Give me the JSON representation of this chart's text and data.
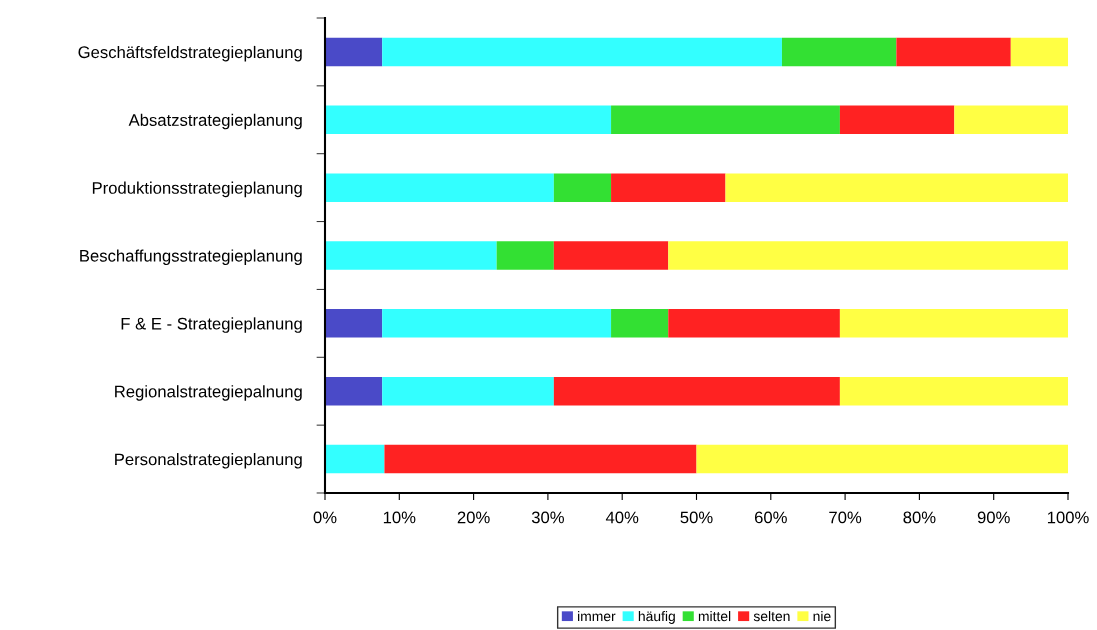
{
  "chart_data": {
    "type": "bar",
    "orientation": "horizontal",
    "stacked": true,
    "categories": [
      "Geschäftsfeldstrategieplanung",
      "Absatzstrategieplanung",
      "Produktionsstrategieplanung",
      "Beschaffungsstrategieplanung",
      "F & E - Strategieplanung",
      "Regionalstrategiepalnung",
      "Personalstrategieplanung"
    ],
    "series": [
      {
        "name": "immer",
        "color": "#4a4ac8",
        "values": [
          7.7,
          0,
          0,
          0,
          7.7,
          7.7,
          0
        ]
      },
      {
        "name": "häufig",
        "color": "#33ffff",
        "values": [
          53.8,
          38.5,
          30.8,
          23.1,
          30.8,
          23.1,
          8
        ]
      },
      {
        "name": "mittel",
        "color": "#33e033",
        "values": [
          15.4,
          30.8,
          7.7,
          7.7,
          7.7,
          0,
          0
        ]
      },
      {
        "name": "selten",
        "color": "#ff2222",
        "values": [
          15.4,
          15.4,
          15.4,
          15.4,
          23.1,
          38.5,
          42
        ]
      },
      {
        "name": "nie",
        "color": "#ffff44",
        "values": [
          7.7,
          15.4,
          46.2,
          53.8,
          30.8,
          30.8,
          50
        ]
      }
    ],
    "xlim": [
      0,
      100
    ],
    "xticks": [
      {
        "value": 0,
        "label": "0%"
      },
      {
        "value": 10,
        "label": "10%"
      },
      {
        "value": 20,
        "label": "20%"
      },
      {
        "value": 30,
        "label": "30%"
      },
      {
        "value": 40,
        "label": "40%"
      },
      {
        "value": 50,
        "label": "50%"
      },
      {
        "value": 60,
        "label": "60%"
      },
      {
        "value": 70,
        "label": "70%"
      },
      {
        "value": 80,
        "label": "80%"
      },
      {
        "value": 90,
        "label": "90%"
      },
      {
        "value": 100,
        "label": "100%"
      }
    ],
    "legend": "bottom",
    "grid": false
  }
}
